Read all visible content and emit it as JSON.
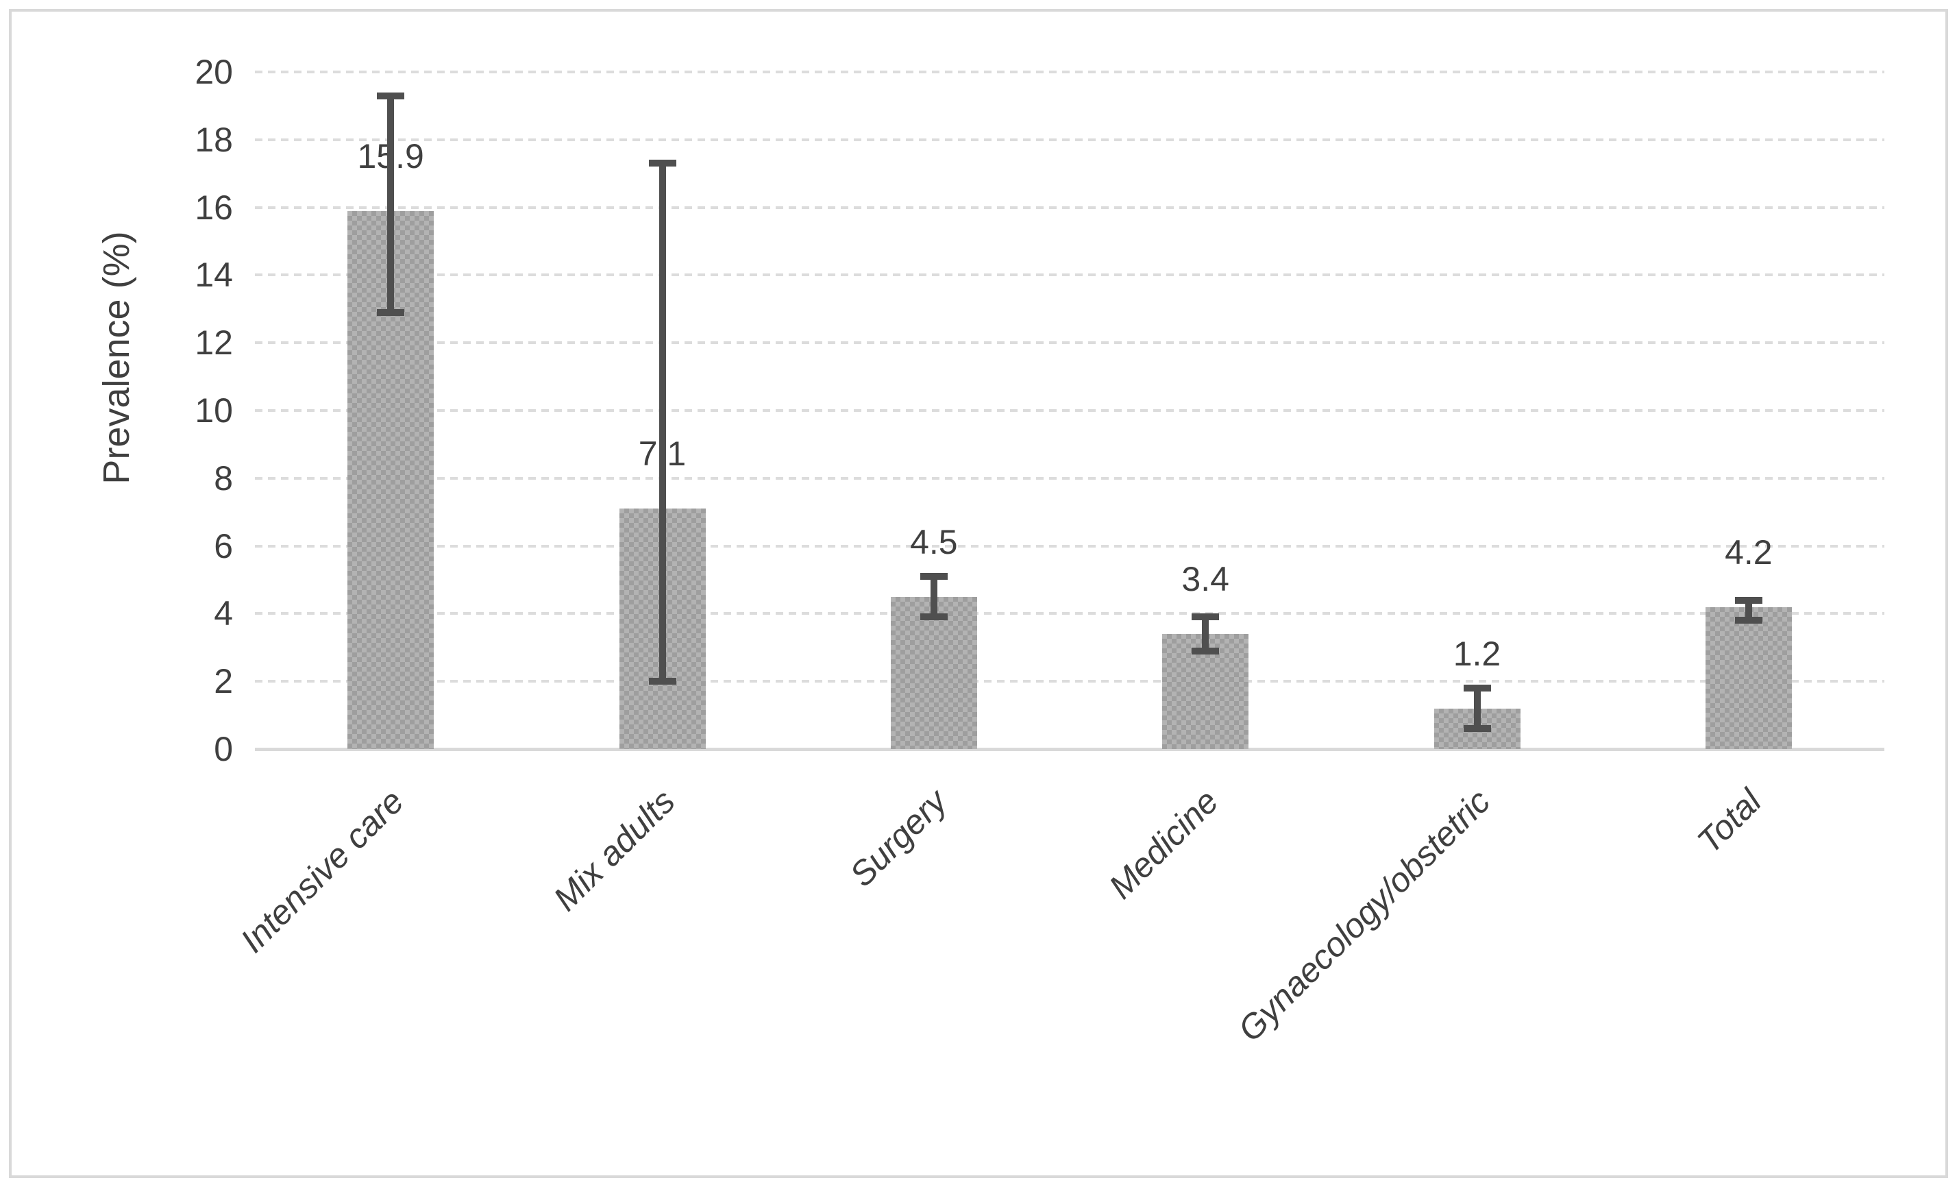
{
  "chart_data": {
    "type": "bar",
    "title": "",
    "ylabel": "Prevalence (%)",
    "xlabel": "",
    "ylim": [
      0,
      20
    ],
    "ytick_step": 2,
    "yticks": [
      0,
      2,
      4,
      6,
      8,
      10,
      12,
      14,
      16,
      18,
      20
    ],
    "categories": [
      "Intensive care",
      "Mix adults",
      "Surgery",
      "Medicine",
      "Gynaecology/obstetric",
      "Total"
    ],
    "series": [
      {
        "name": "Prevalence (%)",
        "values": [
          15.9,
          7.1,
          4.5,
          3.4,
          1.2,
          4.2
        ],
        "data_labels": [
          "15.9",
          "7.1",
          "4.5",
          "3.4",
          "1.2",
          "4.2"
        ],
        "error_bars": [
          {
            "low": 12.9,
            "high": 19.3
          },
          {
            "low": 2.0,
            "high": 17.3
          },
          {
            "low": 3.9,
            "high": 5.1
          },
          {
            "low": 2.9,
            "high": 3.9
          },
          {
            "low": 0.6,
            "high": 1.8
          },
          {
            "low": 3.8,
            "high": 4.4
          }
        ]
      }
    ],
    "grid": "horizontal dotted gridlines every 2 units",
    "legend_position": "none",
    "bar_orientation": "vertical",
    "category_label_rotation_deg": 45
  },
  "style": {
    "background": "#ffffff",
    "figure_border_color": "#d9d9d9",
    "gridline_color": "#dcdcdc",
    "axis_line_color": "#d9d9d9",
    "bar_fill_base": "#b3b3b3",
    "bar_fill_pattern": "#9e9e9e",
    "error_bar_color": "#4f4f4f",
    "text_color": "#3f3f3f"
  }
}
